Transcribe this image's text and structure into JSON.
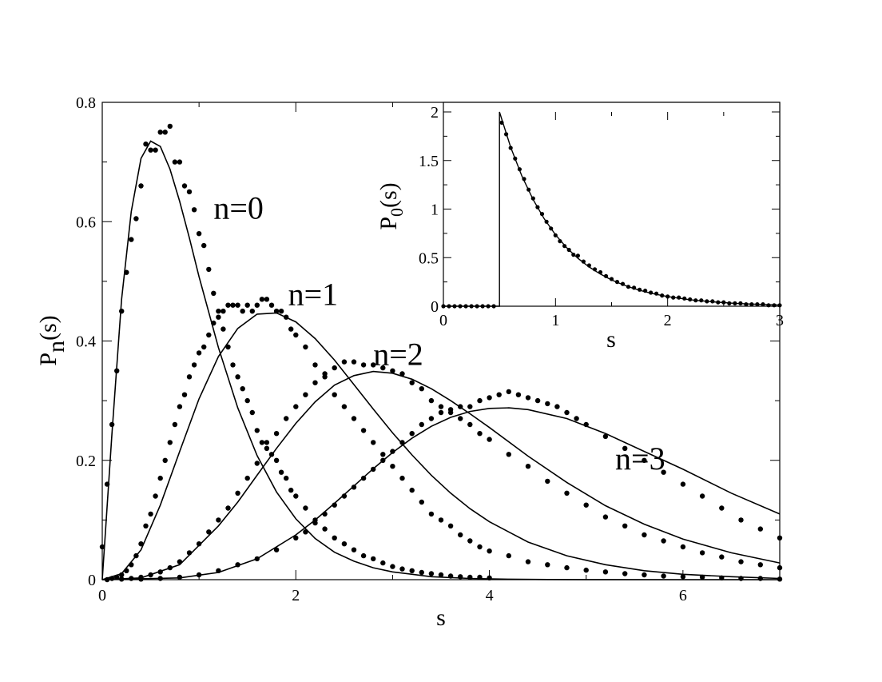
{
  "chart_data": [
    {
      "type": "line",
      "xlabel": "s",
      "ylabel_main": "P",
      "ylabel_sub": "n",
      "ylabel_tail": "(s)",
      "xlim": [
        0,
        7
      ],
      "ylim": [
        0,
        0.8
      ],
      "xticks": [
        0,
        2,
        4,
        6
      ],
      "xtick_labels": [
        "0",
        "2",
        "4",
        "6"
      ],
      "yticks": [
        0,
        0.2,
        0.4,
        0.6,
        0.8
      ],
      "ytick_labels": [
        "0",
        "0.2",
        "0.4",
        "0.6",
        "0.8"
      ],
      "grid": false,
      "annotations": [
        {
          "text": "n=0",
          "x": 1.15,
          "y": 0.605
        },
        {
          "text": "n=1",
          "x": 1.92,
          "y": 0.46
        },
        {
          "text": "n=2",
          "x": 2.8,
          "y": 0.36
        },
        {
          "text": "n=3",
          "x": 5.3,
          "y": 0.185
        }
      ],
      "series": [
        {
          "kind": "curve",
          "x": [
            0,
            0.1,
            0.2,
            0.3,
            0.4,
            0.5,
            0.6,
            0.7,
            0.8,
            0.9,
            1.0,
            1.2,
            1.4,
            1.6,
            1.8,
            2.0,
            2.2,
            2.4,
            2.6,
            2.8,
            3.0,
            3.4,
            3.8,
            4.2,
            4.6,
            5.0,
            6.0,
            7.0
          ],
          "y": [
            0,
            0.244,
            0.47,
            0.617,
            0.706,
            0.735,
            0.726,
            0.688,
            0.634,
            0.573,
            0.508,
            0.389,
            0.288,
            0.208,
            0.147,
            0.102,
            0.069,
            0.046,
            0.031,
            0.02,
            0.013,
            0.005,
            0.002,
            0.0008,
            0.0003,
            0.0001,
            0,
            0
          ]
        },
        {
          "kind": "markers",
          "x": [
            0.0,
            0.05,
            0.1,
            0.15,
            0.2,
            0.25,
            0.3,
            0.35,
            0.4,
            0.45,
            0.5,
            0.55,
            0.6,
            0.65,
            0.7,
            0.75,
            0.8,
            0.85,
            0.9,
            0.95,
            1.0,
            1.05,
            1.1,
            1.15,
            1.2,
            1.25,
            1.3,
            1.35,
            1.4,
            1.45,
            1.5,
            1.55,
            1.6,
            1.65,
            1.7,
            1.75,
            1.8,
            1.85,
            1.9,
            1.95,
            2.0,
            2.1,
            2.2,
            2.3,
            2.4,
            2.5,
            2.6,
            2.7,
            2.8,
            2.9,
            3.0,
            3.1,
            3.2,
            3.3,
            3.4,
            3.5,
            3.6,
            3.7,
            3.8,
            3.9,
            4.0
          ],
          "y": [
            0.055,
            0.16,
            0.26,
            0.35,
            0.45,
            0.515,
            0.57,
            0.605,
            0.66,
            0.73,
            0.72,
            0.72,
            0.75,
            0.75,
            0.76,
            0.7,
            0.7,
            0.66,
            0.65,
            0.62,
            0.58,
            0.56,
            0.52,
            0.48,
            0.45,
            0.42,
            0.39,
            0.36,
            0.34,
            0.32,
            0.3,
            0.28,
            0.25,
            0.23,
            0.23,
            0.21,
            0.2,
            0.18,
            0.17,
            0.15,
            0.14,
            0.12,
            0.1,
            0.085,
            0.07,
            0.06,
            0.05,
            0.04,
            0.035,
            0.028,
            0.022,
            0.018,
            0.015,
            0.012,
            0.01,
            0.008,
            0.006,
            0.005,
            0.004,
            0.004,
            0.003
          ]
        },
        {
          "kind": "curve",
          "x": [
            0,
            0.2,
            0.4,
            0.6,
            0.8,
            1.0,
            1.2,
            1.4,
            1.6,
            1.8,
            2.0,
            2.2,
            2.4,
            2.6,
            2.8,
            3.0,
            3.2,
            3.4,
            3.6,
            3.8,
            4.0,
            4.4,
            4.8,
            5.2,
            5.6,
            6.0,
            6.5,
            7.0
          ],
          "y": [
            0,
            0.01,
            0.05,
            0.125,
            0.215,
            0.303,
            0.374,
            0.421,
            0.445,
            0.447,
            0.432,
            0.404,
            0.368,
            0.327,
            0.286,
            0.246,
            0.209,
            0.175,
            0.145,
            0.119,
            0.097,
            0.063,
            0.04,
            0.025,
            0.015,
            0.009,
            0.005,
            0.002
          ]
        },
        {
          "kind": "markers",
          "x": [
            0.05,
            0.1,
            0.15,
            0.2,
            0.25,
            0.3,
            0.35,
            0.4,
            0.45,
            0.5,
            0.55,
            0.6,
            0.65,
            0.7,
            0.75,
            0.8,
            0.85,
            0.9,
            0.95,
            1.0,
            1.05,
            1.1,
            1.15,
            1.2,
            1.25,
            1.3,
            1.35,
            1.4,
            1.45,
            1.5,
            1.55,
            1.6,
            1.65,
            1.7,
            1.75,
            1.8,
            1.85,
            1.9,
            1.95,
            2.0,
            2.1,
            2.2,
            2.3,
            2.4,
            2.5,
            2.6,
            2.7,
            2.8,
            2.9,
            3.0,
            3.1,
            3.2,
            3.3,
            3.4,
            3.5,
            3.6,
            3.7,
            3.8,
            3.9,
            4.0,
            4.2,
            4.4,
            4.6,
            4.8,
            5.0,
            5.2,
            5.4,
            5.6,
            5.8,
            6.0,
            6.2,
            6.4,
            6.6,
            6.8,
            7.0
          ],
          "y": [
            0.0,
            0.002,
            0.004,
            0.008,
            0.015,
            0.025,
            0.04,
            0.06,
            0.09,
            0.11,
            0.14,
            0.17,
            0.2,
            0.23,
            0.26,
            0.29,
            0.31,
            0.34,
            0.36,
            0.38,
            0.39,
            0.41,
            0.43,
            0.44,
            0.45,
            0.46,
            0.46,
            0.46,
            0.45,
            0.46,
            0.45,
            0.46,
            0.47,
            0.47,
            0.46,
            0.45,
            0.45,
            0.44,
            0.42,
            0.41,
            0.39,
            0.36,
            0.34,
            0.31,
            0.29,
            0.27,
            0.25,
            0.23,
            0.21,
            0.19,
            0.17,
            0.15,
            0.13,
            0.11,
            0.1,
            0.09,
            0.075,
            0.065,
            0.055,
            0.048,
            0.04,
            0.03,
            0.025,
            0.02,
            0.016,
            0.013,
            0.01,
            0.008,
            0.006,
            0.005,
            0.004,
            0.003,
            0.002,
            0.002,
            0.001
          ]
        },
        {
          "kind": "curve",
          "x": [
            0,
            0.4,
            0.8,
            1.2,
            1.4,
            1.6,
            1.8,
            2.0,
            2.2,
            2.4,
            2.6,
            2.8,
            3.0,
            3.2,
            3.4,
            3.6,
            3.8,
            4.0,
            4.4,
            4.8,
            5.2,
            5.6,
            6.0,
            6.5,
            7.0
          ],
          "y": [
            0,
            0.003,
            0.025,
            0.09,
            0.13,
            0.175,
            0.22,
            0.262,
            0.298,
            0.326,
            0.342,
            0.349,
            0.346,
            0.336,
            0.32,
            0.3,
            0.278,
            0.255,
            0.207,
            0.163,
            0.124,
            0.093,
            0.068,
            0.045,
            0.028
          ]
        },
        {
          "kind": "markers",
          "x": [
            0.2,
            0.3,
            0.4,
            0.5,
            0.6,
            0.7,
            0.8,
            0.9,
            1.0,
            1.1,
            1.2,
            1.3,
            1.4,
            1.5,
            1.6,
            1.7,
            1.8,
            1.9,
            2.0,
            2.1,
            2.2,
            2.3,
            2.4,
            2.5,
            2.6,
            2.7,
            2.8,
            2.9,
            3.0,
            3.1,
            3.2,
            3.3,
            3.4,
            3.5,
            3.6,
            3.7,
            3.8,
            3.9,
            4.0,
            4.2,
            4.4,
            4.6,
            4.8,
            5.0,
            5.2,
            5.4,
            5.6,
            5.8,
            6.0,
            6.2,
            6.4,
            6.6,
            6.8,
            7.0
          ],
          "y": [
            0.001,
            0.002,
            0.004,
            0.008,
            0.013,
            0.02,
            0.03,
            0.045,
            0.06,
            0.08,
            0.1,
            0.12,
            0.145,
            0.17,
            0.195,
            0.22,
            0.245,
            0.27,
            0.29,
            0.31,
            0.33,
            0.345,
            0.355,
            0.365,
            0.365,
            0.36,
            0.36,
            0.355,
            0.35,
            0.345,
            0.33,
            0.32,
            0.3,
            0.29,
            0.28,
            0.27,
            0.26,
            0.245,
            0.235,
            0.21,
            0.19,
            0.165,
            0.145,
            0.125,
            0.105,
            0.09,
            0.075,
            0.065,
            0.055,
            0.045,
            0.038,
            0.03,
            0.025,
            0.02
          ]
        },
        {
          "kind": "curve",
          "x": [
            0,
            0.8,
            1.2,
            1.6,
            2.0,
            2.2,
            2.4,
            2.6,
            2.8,
            3.0,
            3.2,
            3.4,
            3.6,
            3.8,
            4.0,
            4.2,
            4.4,
            4.8,
            5.2,
            5.6,
            6.0,
            6.5,
            7.0
          ],
          "y": [
            0,
            0.003,
            0.012,
            0.035,
            0.075,
            0.1,
            0.128,
            0.157,
            0.186,
            0.213,
            0.237,
            0.257,
            0.272,
            0.282,
            0.287,
            0.288,
            0.285,
            0.27,
            0.245,
            0.215,
            0.185,
            0.145,
            0.11
          ]
        },
        {
          "kind": "markers",
          "x": [
            0.4,
            0.6,
            0.8,
            1.0,
            1.2,
            1.4,
            1.6,
            1.8,
            2.0,
            2.1,
            2.2,
            2.3,
            2.4,
            2.5,
            2.6,
            2.7,
            2.8,
            2.9,
            3.0,
            3.1,
            3.2,
            3.3,
            3.4,
            3.5,
            3.6,
            3.7,
            3.8,
            3.9,
            4.0,
            4.1,
            4.2,
            4.3,
            4.4,
            4.5,
            4.6,
            4.7,
            4.8,
            4.9,
            5.0,
            5.2,
            5.4,
            5.6,
            5.8,
            6.0,
            6.2,
            6.4,
            6.6,
            6.8,
            7.0
          ],
          "y": [
            0.001,
            0.002,
            0.004,
            0.008,
            0.015,
            0.025,
            0.035,
            0.05,
            0.07,
            0.08,
            0.095,
            0.11,
            0.125,
            0.14,
            0.155,
            0.17,
            0.185,
            0.2,
            0.215,
            0.23,
            0.245,
            0.26,
            0.27,
            0.28,
            0.285,
            0.29,
            0.29,
            0.3,
            0.305,
            0.31,
            0.315,
            0.31,
            0.305,
            0.3,
            0.295,
            0.29,
            0.28,
            0.27,
            0.26,
            0.24,
            0.22,
            0.2,
            0.18,
            0.16,
            0.14,
            0.12,
            0.1,
            0.085,
            0.07
          ]
        }
      ]
    },
    {
      "type": "line",
      "inset": true,
      "xlabel": "s",
      "ylabel_main": "P",
      "ylabel_sub": "0",
      "ylabel_tail": "(s)",
      "xlim": [
        0,
        3
      ],
      "ylim": [
        0,
        2
      ],
      "xticks": [
        0,
        1,
        2,
        3
      ],
      "xtick_labels": [
        "0",
        "1",
        "2",
        "3"
      ],
      "yticks": [
        0,
        0.5,
        1,
        1.5,
        2
      ],
      "ytick_labels": [
        "0",
        "0.5",
        "1",
        "1.5",
        "2"
      ],
      "grid": false,
      "series": [
        {
          "kind": "curve",
          "x": [
            0,
            0.5,
            0.5,
            0.6,
            0.7,
            0.8,
            0.9,
            1.0,
            1.1,
            1.2,
            1.3,
            1.4,
            1.5,
            1.6,
            1.7,
            1.8,
            1.9,
            2.0,
            2.2,
            2.4,
            2.6,
            2.8,
            3.0
          ],
          "y": [
            0,
            0,
            2.0,
            1.637,
            1.341,
            1.098,
            0.899,
            0.736,
            0.602,
            0.493,
            0.404,
            0.331,
            0.271,
            0.222,
            0.182,
            0.149,
            0.122,
            0.1,
            0.067,
            0.045,
            0.03,
            0.02,
            0.013
          ]
        },
        {
          "kind": "markers",
          "x": [
            0.0,
            0.05,
            0.1,
            0.15,
            0.2,
            0.25,
            0.3,
            0.35,
            0.4,
            0.45,
            0.52,
            0.56,
            0.6,
            0.64,
            0.68,
            0.72,
            0.76,
            0.8,
            0.84,
            0.88,
            0.92,
            0.96,
            1.0,
            1.04,
            1.08,
            1.12,
            1.16,
            1.2,
            1.25,
            1.3,
            1.35,
            1.4,
            1.45,
            1.5,
            1.55,
            1.6,
            1.65,
            1.7,
            1.75,
            1.8,
            1.85,
            1.9,
            1.95,
            2.0,
            2.05,
            2.1,
            2.15,
            2.2,
            2.25,
            2.3,
            2.35,
            2.4,
            2.45,
            2.5,
            2.55,
            2.6,
            2.65,
            2.7,
            2.75,
            2.8,
            2.85,
            2.9,
            2.95,
            3.0
          ],
          "y": [
            0,
            0,
            0,
            0,
            0,
            0,
            0,
            0,
            0,
            0,
            1.89,
            1.77,
            1.63,
            1.52,
            1.41,
            1.31,
            1.2,
            1.11,
            1.02,
            0.95,
            0.87,
            0.8,
            0.73,
            0.67,
            0.62,
            0.58,
            0.53,
            0.52,
            0.46,
            0.42,
            0.38,
            0.35,
            0.31,
            0.28,
            0.25,
            0.23,
            0.2,
            0.19,
            0.17,
            0.16,
            0.14,
            0.13,
            0.11,
            0.1,
            0.09,
            0.09,
            0.08,
            0.07,
            0.06,
            0.06,
            0.05,
            0.05,
            0.04,
            0.04,
            0.03,
            0.03,
            0.03,
            0.02,
            0.02,
            0.02,
            0.02,
            0.01,
            0.01,
            0.01
          ]
        }
      ]
    }
  ]
}
